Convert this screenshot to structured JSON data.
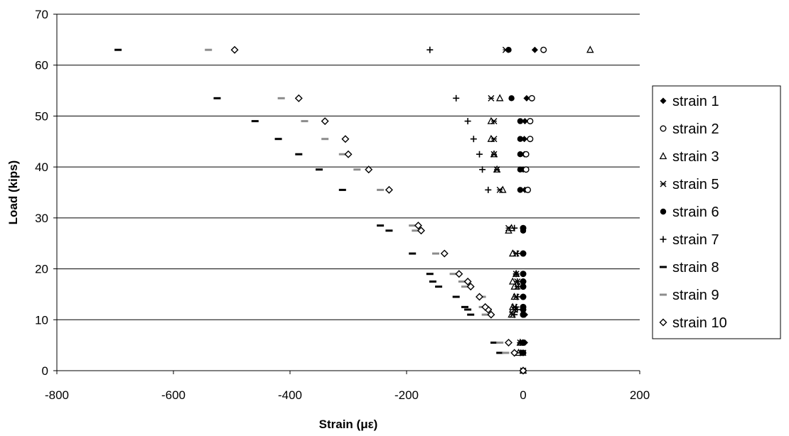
{
  "chart_data": {
    "type": "scatter",
    "xlabel": "Strain (με)",
    "ylabel": "Load (kips)",
    "xlim": [
      -800,
      200
    ],
    "ylim": [
      0,
      70
    ],
    "xticks": [
      -800,
      -600,
      -400,
      -200,
      0,
      200
    ],
    "yticks": [
      0,
      10,
      20,
      30,
      40,
      50,
      60,
      70
    ],
    "grid": "horizontal major gridlines",
    "legend_position": "right",
    "series": [
      {
        "name": "strain 1",
        "marker": "diamond-filled",
        "x": [
          0,
          -3,
          3,
          3,
          0,
          0,
          0,
          0,
          0,
          0,
          0,
          0,
          3,
          0,
          2,
          2,
          3,
          6,
          20
        ],
        "y": [
          0,
          3.5,
          5.5,
          11,
          12,
          12.5,
          14.5,
          16.5,
          17.5,
          19,
          23,
          28,
          35.5,
          39.5,
          42.5,
          45.5,
          49,
          53.5,
          63
        ]
      },
      {
        "name": "strain 2",
        "marker": "circle-open",
        "x": [
          0,
          0,
          0,
          0,
          0,
          0,
          0,
          0,
          0,
          0,
          0,
          0,
          8,
          5,
          5,
          12,
          12,
          15,
          35
        ],
        "y": [
          0,
          3.5,
          5.5,
          11,
          12,
          12.5,
          14.5,
          16.5,
          17.5,
          19,
          23,
          28,
          35.5,
          39.5,
          42.5,
          45.5,
          49,
          53.5,
          63
        ]
      },
      {
        "name": "strain 3",
        "marker": "triangle-open",
        "x": [
          0,
          -8,
          -5,
          -20,
          -18,
          -18,
          -15,
          -15,
          -18,
          -12,
          -18,
          -25,
          -20,
          -35,
          -45,
          -50,
          -55,
          -55,
          -40,
          115
        ],
        "y": [
          0,
          3.5,
          5.5,
          11,
          12,
          12.5,
          14.5,
          16.5,
          17.5,
          19,
          23,
          27.5,
          28,
          35.5,
          39.5,
          42.5,
          45.5,
          49,
          53.5,
          63
        ]
      },
      {
        "name": "strain 5",
        "marker": "asterisk",
        "x": [
          0,
          0,
          -5,
          -18,
          -15,
          -15,
          -12,
          -10,
          -10,
          -12,
          -12,
          -25,
          -40,
          -45,
          -50,
          -50,
          -50,
          -55,
          -30
        ],
        "y": [
          0,
          3.5,
          5.5,
          11,
          12,
          12.5,
          14.5,
          16.5,
          17.5,
          19,
          23,
          28,
          35.5,
          39.5,
          42.5,
          45.5,
          49,
          53.5,
          63
        ]
      },
      {
        "name": "strain 6",
        "marker": "circle-filled",
        "x": [
          0,
          0,
          0,
          0,
          0,
          0,
          0,
          0,
          0,
          0,
          0,
          0,
          0,
          -5,
          -5,
          -5,
          -5,
          -5,
          -20,
          -25
        ],
        "y": [
          0,
          3.5,
          5.5,
          11,
          12,
          12.5,
          14.5,
          16.5,
          17.5,
          19,
          23,
          27.5,
          28,
          35.5,
          39.5,
          42.5,
          45.5,
          49,
          53.5,
          63
        ]
      },
      {
        "name": "strain 7",
        "marker": "plus",
        "x": [
          0,
          -5,
          -5,
          -15,
          -10,
          -12,
          -10,
          -8,
          -10,
          -12,
          -10,
          -15,
          -60,
          -70,
          -75,
          -85,
          -95,
          -115,
          -160
        ],
        "y": [
          0,
          3.5,
          5.5,
          11,
          12,
          12.5,
          14.5,
          16.5,
          17.5,
          19,
          23,
          28,
          35.5,
          39.5,
          42.5,
          45.5,
          49,
          53.5,
          63
        ]
      },
      {
        "name": "strain 8",
        "marker": "dash-black",
        "x": [
          0,
          -40,
          -50,
          -90,
          -95,
          -100,
          -115,
          -145,
          -155,
          -160,
          -190,
          -230,
          -245,
          -310,
          -350,
          -385,
          -420,
          -460,
          -525,
          -695
        ],
        "y": [
          0,
          3.5,
          5.5,
          11,
          12,
          12.5,
          14.5,
          16.5,
          17.5,
          19,
          23,
          27.5,
          28.5,
          35.5,
          39.5,
          42.5,
          45.5,
          49,
          53.5,
          63
        ]
      },
      {
        "name": "strain 9",
        "marker": "dash-gray",
        "x": [
          0,
          -30,
          -40,
          -65,
          -60,
          -70,
          -70,
          -100,
          -105,
          -120,
          -150,
          -185,
          -190,
          -245,
          -285,
          -310,
          -340,
          -375,
          -415,
          -540
        ],
        "y": [
          0,
          3.5,
          5.5,
          11,
          12,
          12.5,
          14.5,
          16.5,
          17.5,
          19,
          23,
          27.5,
          28.5,
          35.5,
          39.5,
          42.5,
          45.5,
          49,
          53.5,
          63
        ]
      },
      {
        "name": "strain 10",
        "marker": "diamond-open",
        "x": [
          0,
          -15,
          -25,
          -55,
          -60,
          -65,
          -75,
          -90,
          -95,
          -110,
          -135,
          -175,
          -180,
          -230,
          -265,
          -300,
          -305,
          -340,
          -385,
          -495
        ],
        "y": [
          0,
          3.5,
          5.5,
          11,
          12,
          12.5,
          14.5,
          16.5,
          17.5,
          19,
          23,
          27.5,
          28.5,
          35.5,
          39.5,
          42.5,
          45.5,
          49,
          53.5,
          63
        ]
      }
    ]
  }
}
